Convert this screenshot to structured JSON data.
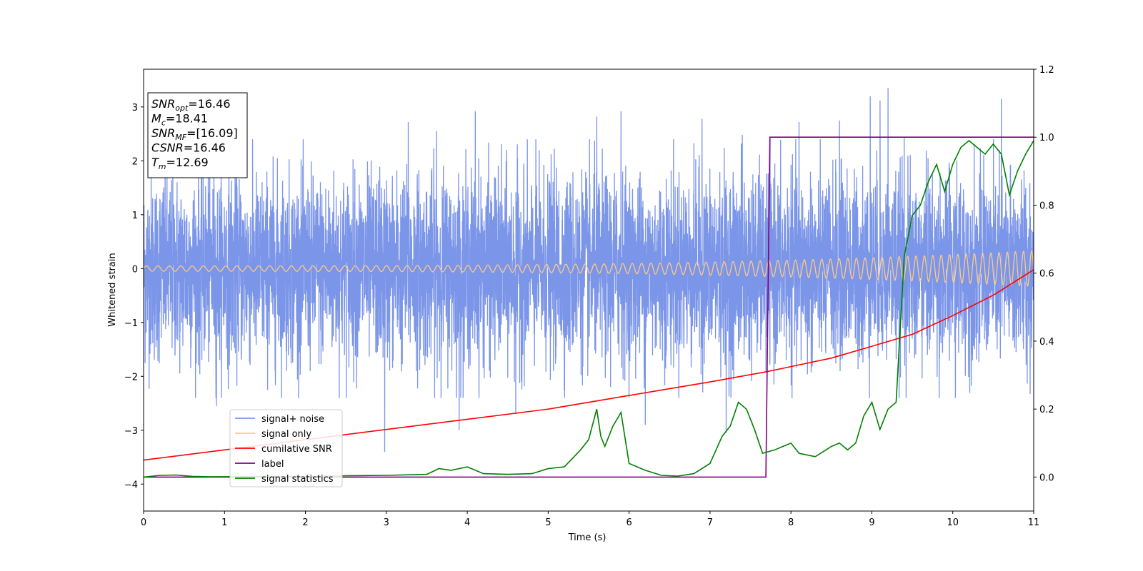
{
  "chart_data": {
    "type": "line",
    "xlabel": "Time (s)",
    "ylabel": "Whitened strain",
    "xlim": [
      0,
      11
    ],
    "ylim_left": [
      -4.5,
      3.7
    ],
    "ylim_right": [
      -0.1,
      1.2
    ],
    "x_ticks": [
      0,
      1,
      2,
      3,
      4,
      5,
      6,
      7,
      8,
      9,
      10,
      11
    ],
    "y_ticks_left": [
      3,
      2,
      1,
      0,
      -1,
      -2,
      -3,
      -4
    ],
    "y_tick_labels_left": [
      "3",
      "2",
      "1",
      "0",
      "−1",
      "−2",
      "−3",
      "−4"
    ],
    "y_ticks_right": [
      1.2,
      1.0,
      0.8,
      0.6,
      0.4,
      0.2,
      0.0
    ],
    "y_tick_labels_right": [
      "1.2",
      "1.0",
      "0.8",
      "0.6",
      "0.4",
      "0.2",
      "0.0"
    ],
    "legend_position": "lower-left",
    "annotation": {
      "lines": [
        {
          "var": "SNR",
          "sub": "opt",
          "value": "=16.46"
        },
        {
          "var": "M",
          "sub": "c",
          "value": "=18.41"
        },
        {
          "var": "SNR",
          "sub": "MF",
          "value": "=[16.09]"
        },
        {
          "var": "CSNR",
          "sub": "",
          "value": "=16.46"
        },
        {
          "var": "T",
          "sub": "m",
          "value": "=12.69"
        }
      ]
    },
    "series": [
      {
        "name": "signal+ noise",
        "axis": "left",
        "color": "#7b95e8",
        "style": "noise",
        "amplitude_std": 1.0,
        "peaks_high": [
          [
            3.27,
            2.72
          ],
          [
            3.62,
            2.55
          ],
          [
            3.9,
            2.98
          ],
          [
            4.1,
            2.92
          ],
          [
            5.6,
            2.82
          ],
          [
            5.9,
            2.92
          ],
          [
            6.9,
            2.78
          ],
          [
            7.4,
            2.48
          ],
          [
            8.1,
            2.72
          ],
          [
            8.6,
            2.75
          ],
          [
            8.98,
            3.2
          ],
          [
            9.1,
            3.12
          ],
          [
            9.2,
            3.35
          ],
          [
            9.4,
            2.45
          ],
          [
            10.6,
            3.15
          ]
        ],
        "peaks_low": [
          [
            2.98,
            -3.4
          ],
          [
            3.9,
            -3.0
          ],
          [
            6.2,
            -2.9
          ],
          [
            7.2,
            -3.05
          ],
          [
            4.6,
            -2.7
          ],
          [
            0.9,
            -2.55
          ]
        ]
      },
      {
        "name": "signal only",
        "axis": "left",
        "color": "#ffc988",
        "style": "chirp",
        "amp_start": 0.05,
        "amp_end": 0.33,
        "cycles_per_s_start": 7,
        "cycles_per_s_end": 10
      },
      {
        "name": "cumilative SNR",
        "axis": "right",
        "color": "#ff0000",
        "x": [
          0,
          1,
          2,
          3,
          4,
          5,
          6,
          7,
          7.7,
          8,
          8.5,
          9,
          9.5,
          10,
          10.5,
          11
        ],
        "y": [
          0.05,
          0.08,
          0.11,
          0.14,
          0.17,
          0.2,
          0.24,
          0.28,
          0.31,
          0.325,
          0.35,
          0.385,
          0.42,
          0.475,
          0.535,
          0.61
        ]
      },
      {
        "name": "label",
        "axis": "right",
        "color": "#800080",
        "x": [
          0,
          7.69,
          7.74,
          11
        ],
        "y": [
          0.0,
          0.0,
          1.0,
          1.0
        ]
      },
      {
        "name": "signal statistics",
        "axis": "right",
        "color": "#008000",
        "x": [
          0,
          0.2,
          0.4,
          0.6,
          0.8,
          1.0,
          1.5,
          2.0,
          2.5,
          3.0,
          3.5,
          3.65,
          3.8,
          4.0,
          4.2,
          4.5,
          4.8,
          5.0,
          5.2,
          5.4,
          5.5,
          5.6,
          5.65,
          5.7,
          5.8,
          5.9,
          6.0,
          6.2,
          6.4,
          6.6,
          6.8,
          7.0,
          7.15,
          7.25,
          7.35,
          7.45,
          7.55,
          7.65,
          7.8,
          7.9,
          8.0,
          8.1,
          8.3,
          8.5,
          8.6,
          8.7,
          8.8,
          8.9,
          9.0,
          9.1,
          9.2,
          9.3,
          9.4,
          9.5,
          9.6,
          9.7,
          9.8,
          9.9,
          10.0,
          10.1,
          10.2,
          10.3,
          10.4,
          10.5,
          10.6,
          10.7,
          10.8,
          10.9,
          11.0
        ],
        "y": [
          0.0,
          0.005,
          0.006,
          0.002,
          0.001,
          0.001,
          0.002,
          0.001,
          0.004,
          0.005,
          0.008,
          0.025,
          0.02,
          0.03,
          0.01,
          0.008,
          0.01,
          0.025,
          0.03,
          0.08,
          0.11,
          0.2,
          0.12,
          0.09,
          0.15,
          0.19,
          0.04,
          0.02,
          0.005,
          0.003,
          0.01,
          0.04,
          0.12,
          0.15,
          0.22,
          0.2,
          0.14,
          0.07,
          0.08,
          0.09,
          0.1,
          0.07,
          0.06,
          0.09,
          0.1,
          0.08,
          0.1,
          0.18,
          0.22,
          0.14,
          0.2,
          0.22,
          0.65,
          0.77,
          0.8,
          0.87,
          0.92,
          0.84,
          0.92,
          0.97,
          0.99,
          0.97,
          0.95,
          0.98,
          0.95,
          0.83,
          0.9,
          0.95,
          0.99
        ]
      }
    ]
  }
}
